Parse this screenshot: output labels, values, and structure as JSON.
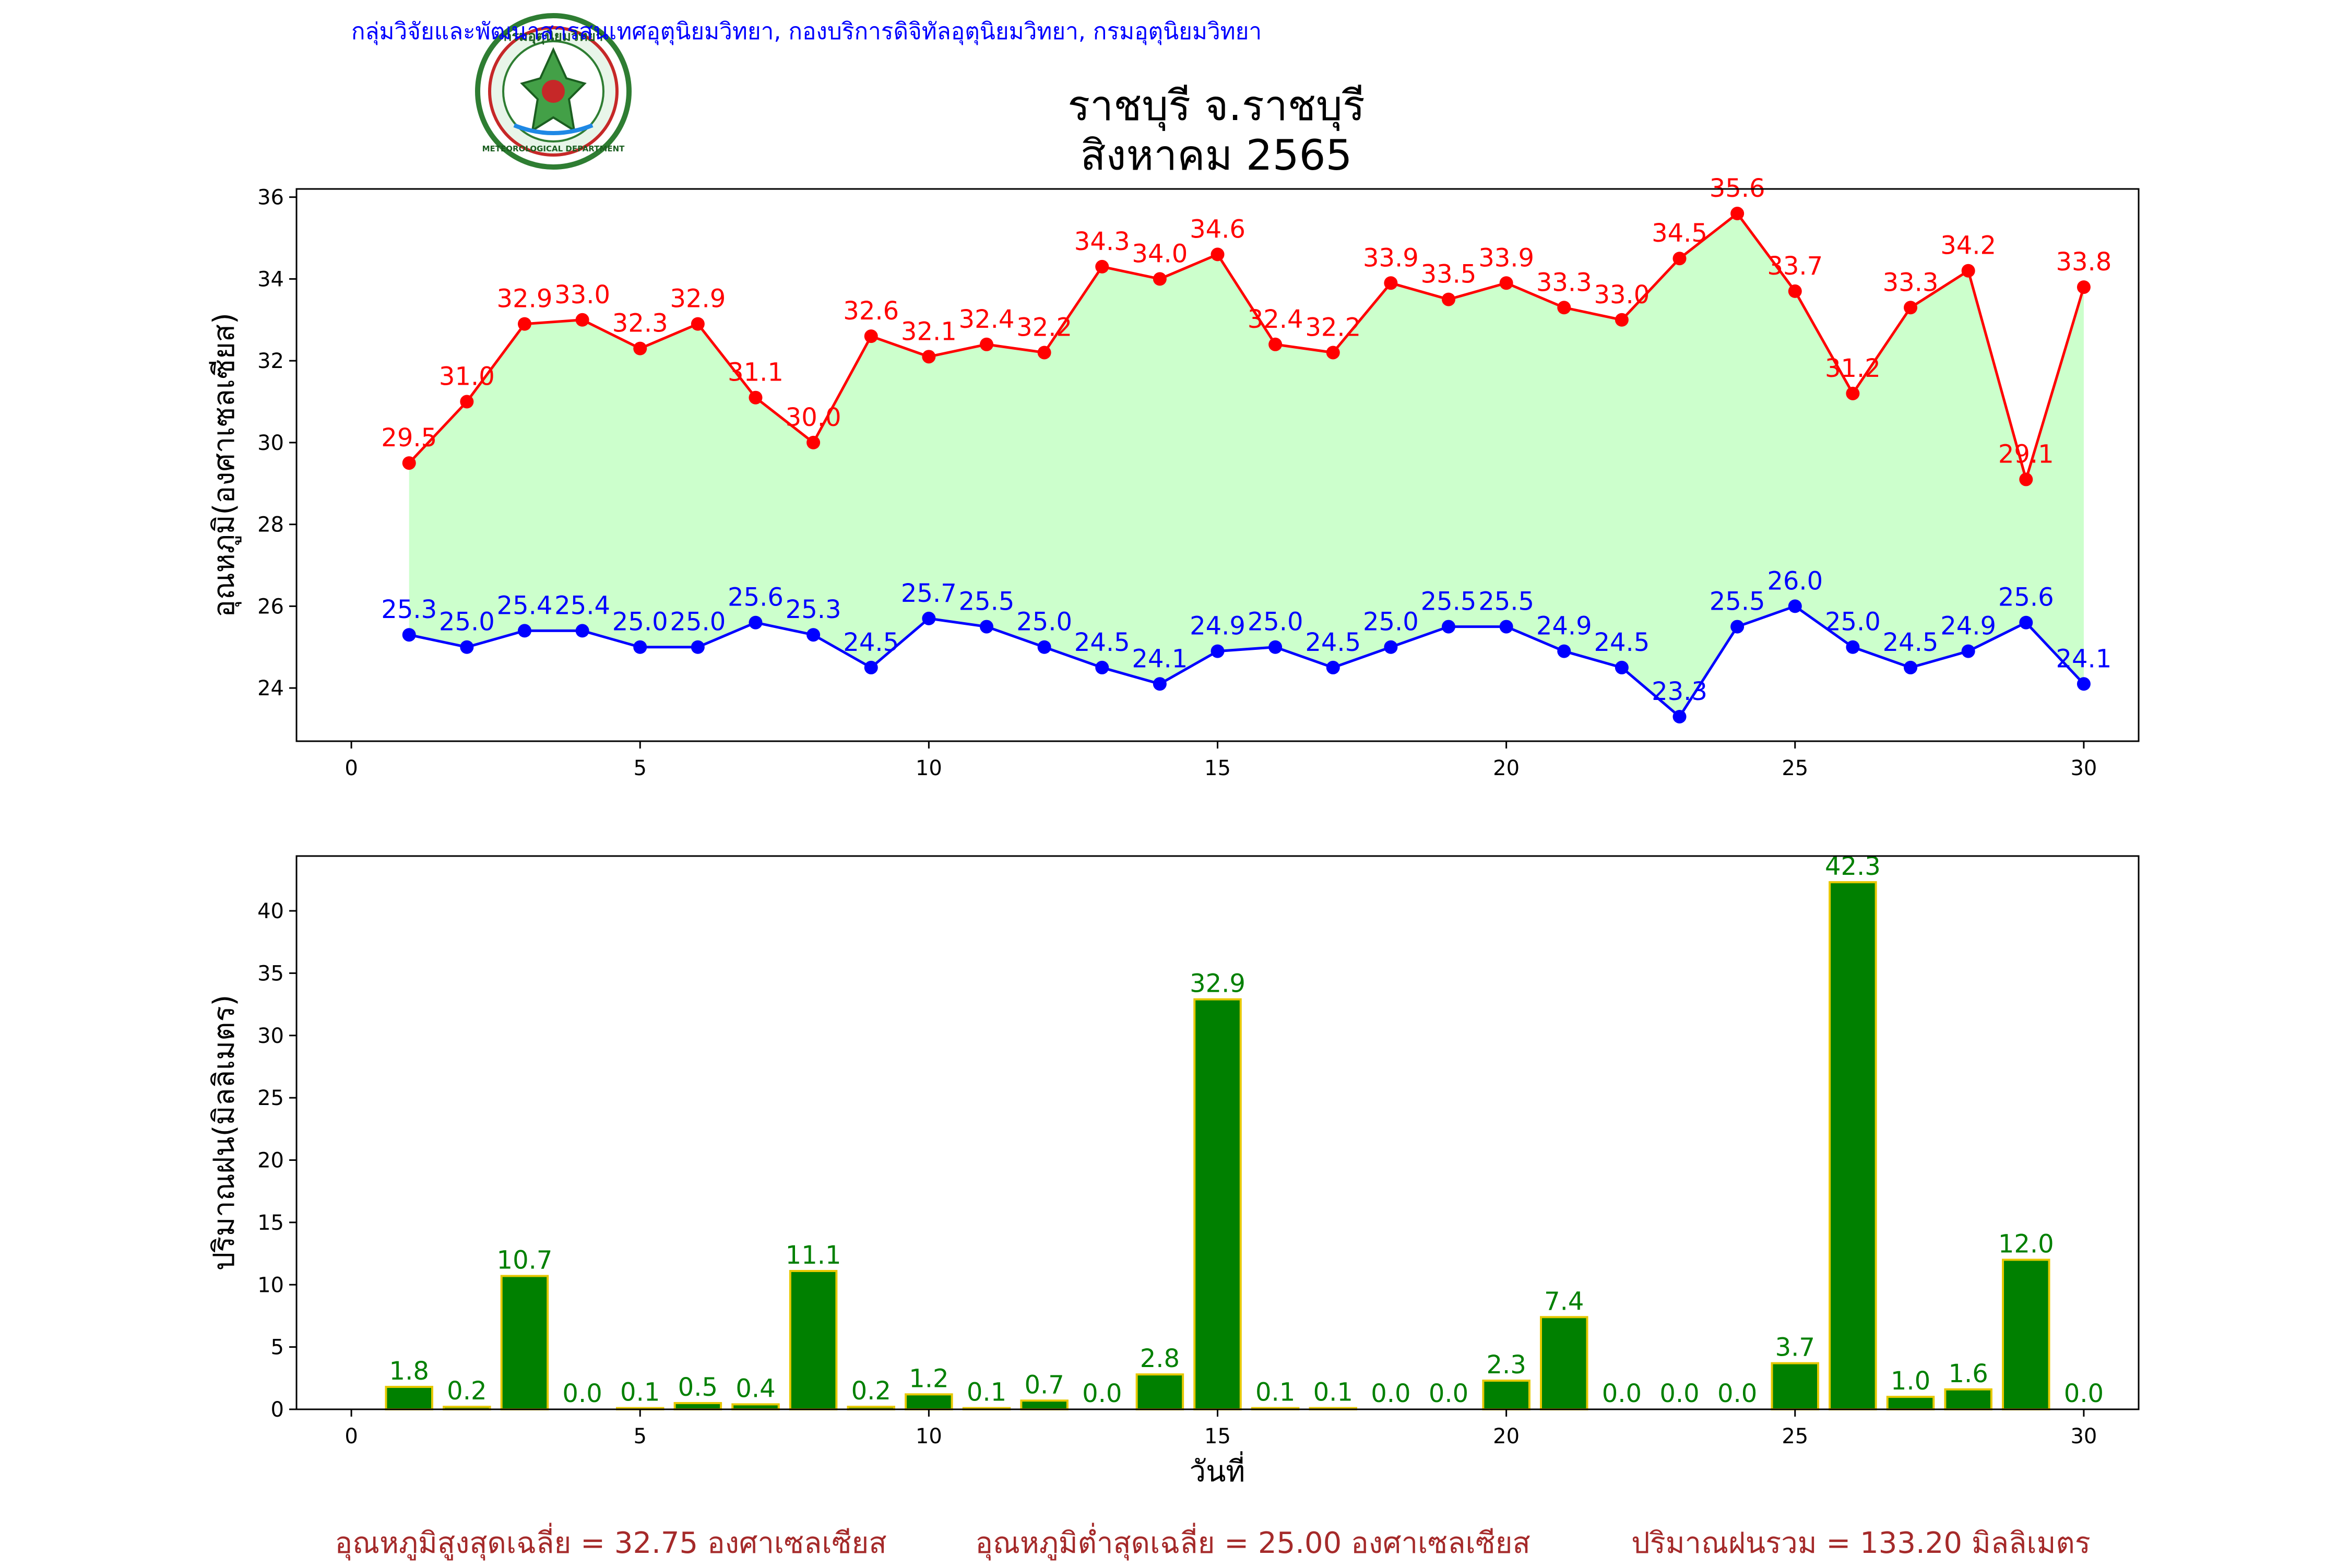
{
  "header": {
    "agency_line": "กลุ่มวิจัยและพัฒนาสารสนเทศอุตุนิยมวิทยา, กองบริการดิจิทัลอุตุนิยมวิทยา, กรมอุตุนิยมวิทยา",
    "station_title": "ราชบุรี จ.ราชบุรี",
    "month_title": "สิงหาคม 2565",
    "logo": {
      "top_text": "กรมอุตุนิยมวิทยา",
      "bottom_text": "METEOROLOGICAL DEPARTMENT"
    }
  },
  "colors": {
    "max_line": "#ff0000",
    "min_line": "#0000ff",
    "fill": "#ccffcc",
    "rain_bar": "#008000",
    "rain_edge": "#e6c800",
    "rain_label": "#008000",
    "summary": "#a52a2a",
    "agency": "#0000ff"
  },
  "chart_data": [
    {
      "type": "line",
      "ylabel": "อุณหภูมิ(องศาเซลเซียส)",
      "xlim": [
        -0.95,
        30.95
      ],
      "ylim": [
        22.7,
        36.2
      ],
      "xticks": [
        0,
        5,
        10,
        15,
        20,
        25,
        30
      ],
      "yticks": [
        24,
        26,
        28,
        30,
        32,
        34,
        36
      ],
      "x": [
        1,
        2,
        3,
        4,
        5,
        6,
        7,
        8,
        9,
        10,
        11,
        12,
        13,
        14,
        15,
        16,
        17,
        18,
        19,
        20,
        21,
        22,
        23,
        24,
        25,
        26,
        27,
        28,
        29,
        30
      ],
      "series": [
        {
          "values": [
            29.5,
            31.0,
            32.9,
            33.0,
            32.3,
            32.9,
            31.1,
            30.0,
            32.6,
            32.1,
            32.4,
            32.2,
            34.3,
            34.0,
            34.6,
            32.4,
            32.2,
            33.9,
            33.5,
            33.9,
            33.3,
            33.0,
            34.5,
            35.6,
            33.7,
            31.2,
            33.3,
            34.2,
            29.1,
            33.8
          ]
        },
        {
          "values": [
            25.3,
            25.0,
            25.4,
            25.4,
            25.0,
            25.0,
            25.6,
            25.3,
            24.5,
            25.7,
            25.5,
            25.0,
            24.5,
            24.1,
            24.9,
            25.0,
            24.5,
            25.0,
            25.5,
            25.5,
            24.9,
            24.5,
            23.3,
            25.5,
            26.0,
            25.0,
            24.5,
            24.9,
            25.6,
            24.1
          ]
        }
      ],
      "fill_between": true
    },
    {
      "type": "bar",
      "xlabel": "วันที่",
      "ylabel": "ปริมาณฝน(มิลลิเมตร)",
      "xlim": [
        -0.95,
        30.95
      ],
      "ylim": [
        0,
        44.4
      ],
      "xticks": [
        0,
        5,
        10,
        15,
        20,
        25,
        30
      ],
      "yticks": [
        0,
        5,
        10,
        15,
        20,
        25,
        30,
        35,
        40
      ],
      "x": [
        1,
        2,
        3,
        4,
        5,
        6,
        7,
        8,
        9,
        10,
        11,
        12,
        13,
        14,
        15,
        16,
        17,
        18,
        19,
        20,
        21,
        22,
        23,
        24,
        25,
        26,
        27,
        28,
        29,
        30
      ],
      "values": [
        1.8,
        0.2,
        10.7,
        0.0,
        0.1,
        0.5,
        0.4,
        11.1,
        0.2,
        1.2,
        0.1,
        0.7,
        0.0,
        2.8,
        32.9,
        0.1,
        0.1,
        0.0,
        0.0,
        2.3,
        7.4,
        0.0,
        0.0,
        0.0,
        3.7,
        42.3,
        1.0,
        1.6,
        12.0,
        0.0
      ]
    }
  ],
  "summary": {
    "avg_max": "อุณหภูมิสูงสุดเฉลี่ย = 32.75 องศาเซลเซียส",
    "avg_min": "อุณหภูมิต่ำสุดเฉลี่ย = 25.00 องศาเซลเซียส",
    "total_rain": "ปริมาณฝนรวม = 133.20 มิลลิเมตร"
  }
}
